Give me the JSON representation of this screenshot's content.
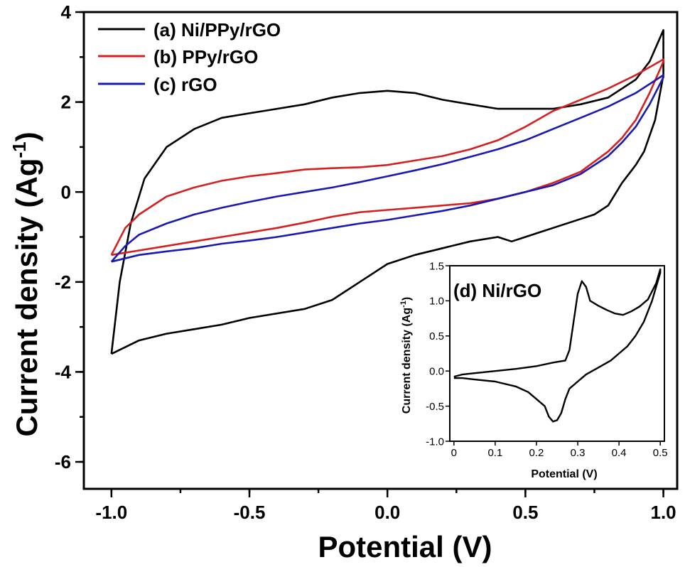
{
  "chart_data": [
    {
      "type": "line",
      "title": "",
      "xlabel": "Potential (V)",
      "ylabel": "Current density (Ag",
      "ylabel_sup": "-1",
      "ylabel_close": ")",
      "xlim": [
        -1.1,
        1.05
      ],
      "ylim": [
        -6.6,
        4
      ],
      "xticks": [
        -1.0,
        -0.5,
        0.0,
        0.5,
        1.0
      ],
      "xtick_labels": [
        "-1.0",
        "-0.5",
        "0.0",
        "0.5",
        "1.0"
      ],
      "yticks": [
        -6,
        -4,
        -2,
        0,
        2,
        4
      ],
      "ytick_labels": [
        "-6",
        "-4",
        "-2",
        "0",
        "2",
        "4"
      ],
      "grid": false,
      "legend_position": "top-left",
      "series": [
        {
          "name": "(a) Ni/PPy/rGO",
          "color": "#000000",
          "x": [
            -1.0,
            -0.97,
            -0.93,
            -0.88,
            -0.8,
            -0.7,
            -0.6,
            -0.5,
            -0.4,
            -0.3,
            -0.2,
            -0.1,
            0.0,
            0.1,
            0.2,
            0.3,
            0.4,
            0.5,
            0.6,
            0.7,
            0.8,
            0.9,
            0.95,
            1.0,
            1.0,
            0.97,
            0.93,
            0.9,
            0.85,
            0.8,
            0.75,
            0.7,
            0.6,
            0.5,
            0.45,
            0.4,
            0.3,
            0.2,
            0.1,
            0.0,
            -0.1,
            -0.2,
            -0.3,
            -0.4,
            -0.5,
            -0.6,
            -0.7,
            -0.8,
            -0.9,
            -0.95,
            -1.0
          ],
          "y": [
            -3.6,
            -2.0,
            -0.7,
            0.3,
            1.0,
            1.4,
            1.65,
            1.75,
            1.85,
            1.95,
            2.1,
            2.2,
            2.25,
            2.2,
            2.05,
            1.95,
            1.85,
            1.85,
            1.85,
            1.95,
            2.1,
            2.5,
            2.9,
            3.6,
            2.6,
            1.6,
            0.9,
            0.6,
            0.2,
            -0.3,
            -0.5,
            -0.6,
            -0.8,
            -1.0,
            -1.1,
            -1.0,
            -1.1,
            -1.25,
            -1.4,
            -1.6,
            -2.0,
            -2.4,
            -2.6,
            -2.7,
            -2.8,
            -2.95,
            -3.05,
            -3.15,
            -3.3,
            -3.45,
            -3.6
          ]
        },
        {
          "name": "(b) PPy/rGO",
          "color": "#d42020",
          "x": [
            -1.0,
            -0.95,
            -0.9,
            -0.8,
            -0.7,
            -0.6,
            -0.5,
            -0.4,
            -0.3,
            -0.2,
            -0.1,
            0.0,
            0.1,
            0.2,
            0.3,
            0.4,
            0.5,
            0.6,
            0.7,
            0.8,
            0.9,
            1.0,
            1.0,
            0.95,
            0.9,
            0.85,
            0.8,
            0.7,
            0.6,
            0.5,
            0.4,
            0.3,
            0.2,
            0.1,
            0.0,
            -0.1,
            -0.2,
            -0.3,
            -0.4,
            -0.5,
            -0.6,
            -0.7,
            -0.8,
            -0.9,
            -1.0
          ],
          "y": [
            -1.4,
            -0.8,
            -0.5,
            -0.1,
            0.1,
            0.25,
            0.35,
            0.42,
            0.5,
            0.53,
            0.55,
            0.6,
            0.7,
            0.8,
            0.95,
            1.15,
            1.45,
            1.8,
            2.05,
            2.3,
            2.6,
            2.95,
            2.9,
            2.2,
            1.6,
            1.2,
            0.9,
            0.45,
            0.2,
            0.0,
            -0.15,
            -0.25,
            -0.3,
            -0.35,
            -0.4,
            -0.45,
            -0.55,
            -0.68,
            -0.8,
            -0.9,
            -1.0,
            -1.1,
            -1.2,
            -1.3,
            -1.4
          ]
        },
        {
          "name": "(c) rGO",
          "color": "#1a1ab0",
          "x": [
            -1.0,
            -0.95,
            -0.9,
            -0.8,
            -0.7,
            -0.6,
            -0.5,
            -0.4,
            -0.3,
            -0.2,
            -0.1,
            0.0,
            0.1,
            0.2,
            0.3,
            0.4,
            0.5,
            0.6,
            0.7,
            0.8,
            0.9,
            1.0,
            1.0,
            0.95,
            0.9,
            0.85,
            0.8,
            0.7,
            0.6,
            0.5,
            0.4,
            0.3,
            0.2,
            0.1,
            0.0,
            -0.1,
            -0.2,
            -0.3,
            -0.4,
            -0.5,
            -0.6,
            -0.7,
            -0.8,
            -0.9,
            -1.0
          ],
          "y": [
            -1.55,
            -1.2,
            -0.95,
            -0.7,
            -0.5,
            -0.35,
            -0.22,
            -0.1,
            0.0,
            0.1,
            0.22,
            0.35,
            0.48,
            0.62,
            0.78,
            0.95,
            1.15,
            1.4,
            1.65,
            1.9,
            2.2,
            2.6,
            2.55,
            1.95,
            1.45,
            1.1,
            0.8,
            0.4,
            0.15,
            0.0,
            -0.15,
            -0.3,
            -0.42,
            -0.52,
            -0.62,
            -0.7,
            -0.8,
            -0.9,
            -1.0,
            -1.08,
            -1.15,
            -1.25,
            -1.32,
            -1.4,
            -1.55
          ]
        }
      ]
    },
    {
      "type": "line",
      "title": "",
      "xlabel": "Potential (V)",
      "ylabel": "Current density (Ag",
      "ylabel_sup": "-1",
      "ylabel_close": ")",
      "xlim": [
        -0.01,
        0.51
      ],
      "ylim": [
        -1.0,
        1.5
      ],
      "xticks": [
        0.0,
        0.1,
        0.2,
        0.3,
        0.4,
        0.5
      ],
      "xtick_labels": [
        "0",
        "0.1",
        "0.2",
        "0.3",
        "0.4",
        "0.5"
      ],
      "yticks": [
        -1.0,
        -0.5,
        0.0,
        0.5,
        1.0,
        1.5
      ],
      "ytick_labels": [
        "-1.0",
        "-0.5",
        "0.0",
        "0.5",
        "1.0",
        "1.5"
      ],
      "grid": false,
      "annotation": "(d) Ni/rGO",
      "series": [
        {
          "name": "(d) Ni/rGO",
          "color": "#000000",
          "x": [
            0.0,
            0.02,
            0.05,
            0.1,
            0.15,
            0.2,
            0.24,
            0.27,
            0.28,
            0.29,
            0.3,
            0.31,
            0.32,
            0.33,
            0.35,
            0.37,
            0.39,
            0.41,
            0.43,
            0.45,
            0.47,
            0.49,
            0.5,
            0.5,
            0.48,
            0.46,
            0.44,
            0.42,
            0.4,
            0.38,
            0.35,
            0.32,
            0.3,
            0.28,
            0.27,
            0.26,
            0.25,
            0.24,
            0.23,
            0.22,
            0.2,
            0.18,
            0.15,
            0.1,
            0.05,
            0.02,
            0.0
          ],
          "y": [
            -0.08,
            -0.05,
            -0.03,
            0.0,
            0.03,
            0.07,
            0.12,
            0.15,
            0.3,
            0.7,
            1.1,
            1.28,
            1.2,
            1.0,
            0.93,
            0.87,
            0.82,
            0.8,
            0.85,
            0.92,
            1.02,
            1.25,
            1.45,
            1.4,
            1.0,
            0.7,
            0.5,
            0.35,
            0.25,
            0.15,
            0.05,
            -0.05,
            -0.15,
            -0.25,
            -0.4,
            -0.6,
            -0.7,
            -0.72,
            -0.65,
            -0.5,
            -0.4,
            -0.3,
            -0.22,
            -0.15,
            -0.12,
            -0.1,
            -0.1
          ]
        }
      ]
    }
  ]
}
